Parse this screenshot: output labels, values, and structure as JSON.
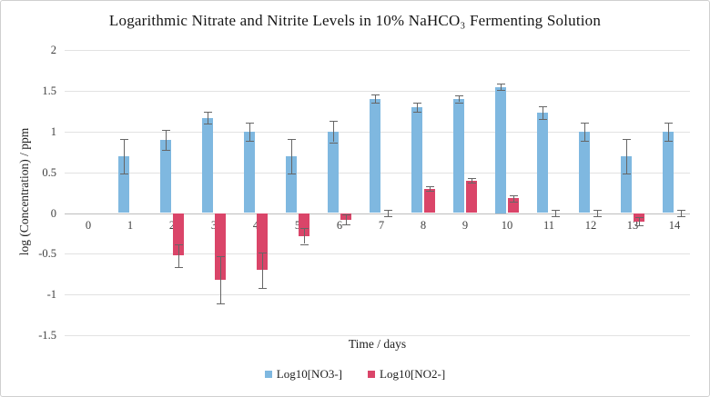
{
  "chart_data": {
    "type": "bar",
    "title": "Logarithmic Nitrate and Nitrite Levels in 10% NaHCO₃ Fermenting Solution",
    "xlabel": "Time / days",
    "ylabel": "log (Concentration) / ppm",
    "categories": [
      "0",
      "1",
      "2",
      "3",
      "4",
      "5",
      "6",
      "7",
      "8",
      "9",
      "10",
      "11",
      "12",
      "13",
      "14"
    ],
    "ytick_labels": [
      "2",
      "1.5",
      "1",
      "0.5",
      "0",
      "-0.5",
      "-1",
      "-1.5"
    ],
    "ylim": [
      -1.5,
      2
    ],
    "grid": true,
    "legend_position": "bottom",
    "has_error_bars": true,
    "error_bar_color": "#666666",
    "gridline_color": "#e2e2e2",
    "zero_line_color": "#bdbdbd",
    "series": [
      {
        "name": "Log10[NO3-]",
        "color": "#7fb8e0",
        "values": [
          null,
          0.7,
          0.9,
          1.17,
          1.0,
          0.7,
          1.0,
          1.4,
          1.3,
          1.4,
          1.55,
          1.23,
          1.0,
          0.7,
          1.0
        ],
        "errors": [
          null,
          0.21,
          0.12,
          0.07,
          0.11,
          0.21,
          0.13,
          0.05,
          0.06,
          0.04,
          0.04,
          0.08,
          0.11,
          0.21,
          0.11
        ]
      },
      {
        "name": "Log10[NO2-]",
        "color": "#da4569",
        "values": [
          null,
          null,
          -0.52,
          -0.82,
          -0.7,
          -0.28,
          -0.08,
          0,
          0.3,
          0.4,
          0.18,
          0,
          0,
          -0.1,
          0
        ],
        "errors": [
          null,
          null,
          0.14,
          0.29,
          0.22,
          0.1,
          0.06,
          0.04,
          0.03,
          0.03,
          0.04,
          0.04,
          0.04,
          0.05,
          0.04
        ]
      }
    ]
  }
}
